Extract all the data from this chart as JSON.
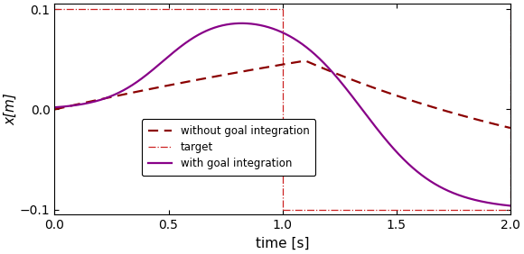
{
  "xlim": [
    0,
    2
  ],
  "ylim": [
    -0.105,
    0.11
  ],
  "xlabel": "time [s]",
  "ylabel": "x[m]",
  "xticks": [
    0,
    0.5,
    1.0,
    1.5,
    2.0
  ],
  "yticks": [
    -0.1,
    0,
    0.1
  ],
  "target_color": "#cc2222",
  "no_goal_color": "#8b0000",
  "with_goal_color": "#880088",
  "legend_labels": [
    "without goal integration",
    "target",
    "with goal integration"
  ],
  "figsize": [
    5.8,
    2.82
  ],
  "dpi": 100,
  "bg_color": "#ffffff"
}
